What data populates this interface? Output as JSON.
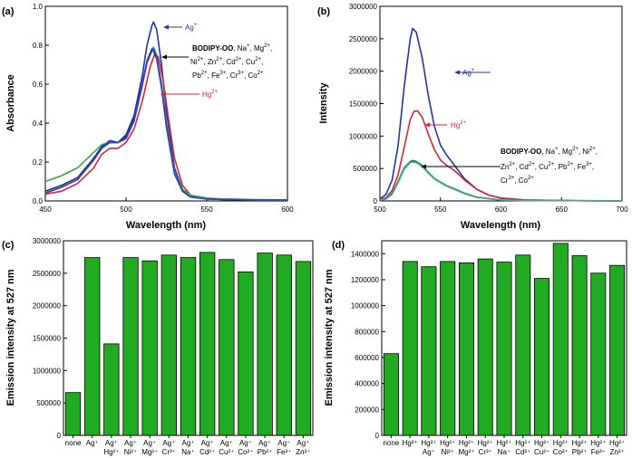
{
  "chart_data": [
    {
      "panel": "(a)",
      "type": "line",
      "xlabel": "Wavelength (nm)",
      "ylabel": "Absorbance",
      "xlim": [
        450,
        600
      ],
      "ylim": [
        0,
        1.0
      ],
      "xticks": [
        "450",
        "500",
        "550",
        "600"
      ],
      "yticks": [
        "0.0",
        "0.2",
        "0.4",
        "0.6",
        "0.8",
        "1.0"
      ],
      "series": [
        {
          "name": "Ag⁺",
          "color": "#2233aa",
          "x": [
            450,
            460,
            470,
            480,
            485,
            490,
            495,
            500,
            505,
            510,
            513,
            516,
            517,
            519,
            522,
            525,
            530,
            535,
            540,
            550,
            560,
            580,
            600
          ],
          "y": [
            0.04,
            0.07,
            0.11,
            0.21,
            0.28,
            0.31,
            0.3,
            0.34,
            0.44,
            0.64,
            0.8,
            0.9,
            0.92,
            0.88,
            0.7,
            0.46,
            0.17,
            0.06,
            0.025,
            0.012,
            0.008,
            0.005,
            0.004
          ]
        },
        {
          "name": "Hg²⁺",
          "color": "#dd2233",
          "x": [
            450,
            460,
            470,
            480,
            485,
            490,
            495,
            500,
            505,
            510,
            515,
            518,
            520,
            523,
            526,
            530,
            535,
            540,
            550,
            560,
            580,
            600
          ],
          "y": [
            0.035,
            0.05,
            0.09,
            0.17,
            0.24,
            0.27,
            0.27,
            0.3,
            0.37,
            0.51,
            0.69,
            0.76,
            0.74,
            0.62,
            0.44,
            0.22,
            0.08,
            0.03,
            0.012,
            0.008,
            0.005,
            0.004
          ]
        },
        {
          "name": "green",
          "color": "#33aa44",
          "x": [
            450,
            460,
            470,
            480,
            485,
            490,
            495,
            500,
            505,
            510,
            513,
            516,
            517,
            519,
            522,
            525,
            530,
            535,
            540,
            550,
            560,
            580,
            600
          ],
          "y": [
            0.1,
            0.13,
            0.17,
            0.25,
            0.29,
            0.3,
            0.3,
            0.33,
            0.42,
            0.6,
            0.71,
            0.78,
            0.79,
            0.75,
            0.6,
            0.4,
            0.15,
            0.06,
            0.03,
            0.015,
            0.01,
            0.007,
            0.005
          ]
        },
        {
          "name": "dark",
          "color": "#223355",
          "x": [
            450,
            460,
            470,
            480,
            485,
            490,
            495,
            500,
            505,
            510,
            513,
            516,
            517,
            519,
            522,
            525,
            530,
            535,
            540,
            550,
            560,
            580,
            600
          ],
          "y": [
            0.05,
            0.08,
            0.12,
            0.22,
            0.28,
            0.3,
            0.3,
            0.33,
            0.42,
            0.6,
            0.72,
            0.78,
            0.77,
            0.73,
            0.58,
            0.38,
            0.14,
            0.05,
            0.02,
            0.01,
            0.007,
            0.005,
            0.004
          ]
        },
        {
          "name": "blue2",
          "color": "#3344cc",
          "x": [
            450,
            460,
            470,
            480,
            485,
            490,
            495,
            500,
            505,
            510,
            513,
            516,
            517,
            519,
            522,
            525,
            530,
            535,
            540,
            550,
            560,
            580,
            600
          ],
          "y": [
            0.04,
            0.07,
            0.11,
            0.21,
            0.27,
            0.3,
            0.3,
            0.32,
            0.41,
            0.59,
            0.71,
            0.77,
            0.78,
            0.74,
            0.59,
            0.39,
            0.14,
            0.05,
            0.02,
            0.01,
            0.007,
            0.005,
            0.004
          ]
        }
      ],
      "annotations": {
        "ag": {
          "main": "Ag",
          "sup": "+"
        },
        "hg": {
          "main": "Hg",
          "sup": "2+"
        },
        "others": {
          "bold": "BODIPY-OO",
          "line1": [
            ", Na",
            "+",
            ", Mg",
            "2+",
            ","
          ],
          "line2": [
            "Ni",
            "2+",
            ", Zn",
            "2+",
            ", Cd",
            "2+",
            ", Cu",
            "2+",
            ","
          ],
          "line3": [
            "Pb",
            "2+",
            ", Fe",
            "3+",
            ", Cr",
            "3+",
            ", Co",
            "2+"
          ]
        }
      }
    },
    {
      "panel": "(b)",
      "type": "line",
      "xlabel": "Wavelength (nm)",
      "ylabel": "Intensity",
      "xlim": [
        500,
        700
      ],
      "ylim": [
        0,
        3000000
      ],
      "xticks": [
        "500",
        "550",
        "600",
        "650",
        "700"
      ],
      "yticks": [
        "0",
        "500000",
        "1000000",
        "1500000",
        "2000000",
        "2500000",
        "3000000"
      ],
      "series": [
        {
          "name": "Ag⁺",
          "color": "#2233aa",
          "x": [
            500,
            505,
            510,
            515,
            520,
            525,
            527,
            530,
            535,
            540,
            545,
            550,
            555,
            560,
            565,
            570,
            580,
            590,
            600,
            620,
            650,
            700
          ],
          "y": [
            30000,
            100000,
            320000,
            850000,
            1750000,
            2500000,
            2660000,
            2600000,
            2200000,
            1620000,
            1150000,
            860000,
            710000,
            590000,
            460000,
            340000,
            180000,
            90000,
            45000,
            15000,
            5000,
            2000
          ]
        },
        {
          "name": "Hg²⁺",
          "color": "#dd2233",
          "x": [
            500,
            505,
            510,
            515,
            520,
            525,
            528,
            531,
            535,
            540,
            545,
            550,
            555,
            560,
            565,
            570,
            580,
            590,
            600,
            620,
            650,
            700
          ],
          "y": [
            20000,
            50000,
            160000,
            400000,
            820000,
            1250000,
            1380000,
            1390000,
            1290000,
            1030000,
            790000,
            630000,
            550000,
            490000,
            410000,
            320000,
            180000,
            90000,
            45000,
            15000,
            5000,
            2000
          ]
        },
        {
          "name": "green",
          "color": "#33aa44",
          "x": [
            500,
            505,
            510,
            515,
            520,
            525,
            527,
            530,
            535,
            540,
            545,
            550,
            555,
            560,
            570,
            580,
            600,
            620,
            700
          ],
          "y": [
            10000,
            35000,
            120000,
            300000,
            510000,
            610000,
            625000,
            610000,
            550000,
            440000,
            350000,
            290000,
            240000,
            200000,
            120000,
            60000,
            15000,
            5000,
            1000
          ]
        },
        {
          "name": "dark",
          "color": "#336666",
          "x": [
            500,
            505,
            510,
            515,
            520,
            525,
            527,
            530,
            535,
            540,
            545,
            550,
            555,
            560,
            570,
            580,
            600,
            620,
            700
          ],
          "y": [
            10000,
            30000,
            110000,
            290000,
            500000,
            600000,
            615000,
            600000,
            540000,
            430000,
            345000,
            285000,
            235000,
            195000,
            115000,
            55000,
            14000,
            5000,
            1000
          ]
        },
        {
          "name": "cyan",
          "color": "#44aa99",
          "x": [
            500,
            505,
            510,
            515,
            520,
            525,
            527,
            530,
            535,
            540,
            545,
            550,
            555,
            560,
            570,
            580,
            600,
            620,
            700
          ],
          "y": [
            10000,
            30000,
            100000,
            280000,
            490000,
            590000,
            600000,
            590000,
            530000,
            425000,
            340000,
            280000,
            230000,
            190000,
            110000,
            55000,
            14000,
            5000,
            1000
          ]
        }
      ],
      "annotations": {
        "ag": {
          "main": "Ag",
          "sup": "+"
        },
        "hg": {
          "main": "Hg",
          "sup": "2+"
        },
        "others": {
          "bold": "BODIPY-OO",
          "line1": [
            ", Na",
            "+",
            ", Mg",
            "2+",
            ", Ni",
            "2+",
            ","
          ],
          "line2": [
            "Zn",
            "2+",
            ", Cd",
            "2+",
            ", Cu",
            "2+",
            ", Pb",
            "2+",
            ", Fe",
            "3+",
            ","
          ],
          "line3": [
            "Cr",
            "3+",
            ", Co",
            "2+"
          ]
        }
      }
    },
    {
      "panel": "(c)",
      "type": "bar",
      "ylabel": "Emission intensity at 527 nm",
      "ylim": [
        0,
        3000000
      ],
      "yticks": [
        "0",
        "500000",
        "1000000",
        "1500000",
        "2000000",
        "2500000",
        "3000000"
      ],
      "bar_color": "#22aa22",
      "categories": [
        {
          "top": "none",
          "bottom": ""
        },
        {
          "top": "Ag⁺",
          "bottom": ""
        },
        {
          "top": "Ag⁺",
          "bottom": "Hg²⁺"
        },
        {
          "top": "Ag⁺",
          "bottom": "Ni²⁺"
        },
        {
          "top": "Ag⁺",
          "bottom": "Mg²⁺"
        },
        {
          "top": "Ag⁺",
          "bottom": "Cr³⁺"
        },
        {
          "top": "Ag⁺",
          "bottom": "Na⁺"
        },
        {
          "top": "Ag⁺",
          "bottom": "Cd²⁺"
        },
        {
          "top": "Ag⁺",
          "bottom": "Cu²⁺"
        },
        {
          "top": "Ag⁺",
          "bottom": "Co²⁺"
        },
        {
          "top": "Ag⁺",
          "bottom": "Pb²⁺"
        },
        {
          "top": "Ag⁺",
          "bottom": "Fe³⁺"
        },
        {
          "top": "Ag⁺",
          "bottom": "Zn²⁺"
        }
      ],
      "values": [
        660000,
        2740000,
        1410000,
        2740000,
        2690000,
        2780000,
        2740000,
        2820000,
        2710000,
        2520000,
        2810000,
        2780000,
        2680000
      ]
    },
    {
      "panel": "(d)",
      "type": "bar",
      "ylabel": "Emission intensity at 527 nm",
      "ylim": [
        0,
        1500000
      ],
      "yticks": [
        "0",
        "200000",
        "400000",
        "600000",
        "800000",
        "1000000",
        "1200000",
        "1400000"
      ],
      "bar_color": "#22aa22",
      "categories": [
        {
          "top": "none",
          "bottom": ""
        },
        {
          "top": "Hg²⁺",
          "bottom": ""
        },
        {
          "top": "Hg²⁺",
          "bottom": "Ag⁺"
        },
        {
          "top": "Hg²⁺",
          "bottom": "Ni²⁺"
        },
        {
          "top": "Hg²⁺",
          "bottom": "Mg²⁺"
        },
        {
          "top": "Hg²⁺",
          "bottom": "Cr³⁺"
        },
        {
          "top": "Hg²⁺",
          "bottom": "Na⁺"
        },
        {
          "top": "Hg²⁺",
          "bottom": "Cd²⁺"
        },
        {
          "top": "Hg²⁺",
          "bottom": "Cu²⁺"
        },
        {
          "top": "Hg²⁺",
          "bottom": "Co²⁺"
        },
        {
          "top": "Hg²⁺",
          "bottom": "Pb²⁺"
        },
        {
          "top": "Hg²⁺",
          "bottom": "Fe³⁺"
        },
        {
          "top": "Hg²⁺",
          "bottom": "Zn²⁺"
        }
      ],
      "values": [
        630000,
        1340000,
        1300000,
        1340000,
        1330000,
        1360000,
        1335000,
        1390000,
        1210000,
        1480000,
        1385000,
        1250000,
        1310000
      ]
    }
  ]
}
